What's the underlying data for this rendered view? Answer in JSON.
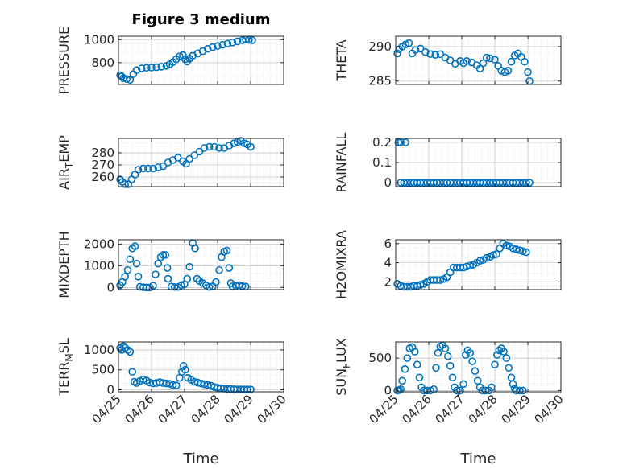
{
  "chart_data": [
    {
      "type": "scatter",
      "title": "Figure 3 medium",
      "ylabel": "PRESSURE",
      "ylim": [
        610,
        1030
      ],
      "yticks": [
        800,
        1000
      ],
      "xlim": [
        0,
        5
      ],
      "grid": true,
      "points": [
        [
          0.05,
          690
        ],
        [
          0.1,
          680
        ],
        [
          0.15,
          665
        ],
        [
          0.25,
          658
        ],
        [
          0.35,
          650
        ],
        [
          0.45,
          700
        ],
        [
          0.55,
          735
        ],
        [
          0.7,
          750
        ],
        [
          0.85,
          755
        ],
        [
          1.0,
          757
        ],
        [
          1.15,
          760
        ],
        [
          1.3,
          765
        ],
        [
          1.45,
          772
        ],
        [
          1.55,
          785
        ],
        [
          1.65,
          805
        ],
        [
          1.75,
          830
        ],
        [
          1.85,
          855
        ],
        [
          1.95,
          865
        ],
        [
          2.02,
          830
        ],
        [
          2.08,
          810
        ],
        [
          2.15,
          835
        ],
        [
          2.25,
          860
        ],
        [
          2.4,
          880
        ],
        [
          2.55,
          900
        ],
        [
          2.7,
          920
        ],
        [
          2.85,
          935
        ],
        [
          3.0,
          945
        ],
        [
          3.15,
          955
        ],
        [
          3.3,
          965
        ],
        [
          3.45,
          975
        ],
        [
          3.6,
          985
        ],
        [
          3.75,
          995
        ],
        [
          3.85,
          1000
        ],
        [
          3.95,
          998
        ],
        [
          4.05,
          995
        ]
      ]
    },
    {
      "type": "scatter",
      "ylabel": "THETA",
      "ylim": [
        284.5,
        291.5
      ],
      "yticks": [
        285,
        290
      ],
      "xlim": [
        0,
        5
      ],
      "grid": true,
      "points": [
        [
          0.05,
          289.0
        ],
        [
          0.1,
          289.6
        ],
        [
          0.2,
          290.0
        ],
        [
          0.3,
          290.3
        ],
        [
          0.4,
          290.5
        ],
        [
          0.5,
          289.0
        ],
        [
          0.6,
          289.5
        ],
        [
          0.75,
          289.7
        ],
        [
          0.9,
          289.2
        ],
        [
          1.05,
          288.9
        ],
        [
          1.2,
          288.8
        ],
        [
          1.35,
          288.9
        ],
        [
          1.5,
          288.4
        ],
        [
          1.65,
          288.0
        ],
        [
          1.8,
          287.5
        ],
        [
          1.95,
          287.9
        ],
        [
          2.05,
          287.6
        ],
        [
          2.15,
          287.9
        ],
        [
          2.3,
          287.7
        ],
        [
          2.45,
          287.3
        ],
        [
          2.55,
          286.8
        ],
        [
          2.65,
          287.6
        ],
        [
          2.75,
          288.4
        ],
        [
          2.85,
          288.3
        ],
        [
          3.0,
          288.1
        ],
        [
          3.1,
          287.2
        ],
        [
          3.2,
          286.5
        ],
        [
          3.3,
          286.3
        ],
        [
          3.4,
          286.5
        ],
        [
          3.5,
          287.8
        ],
        [
          3.6,
          288.7
        ],
        [
          3.7,
          289.0
        ],
        [
          3.8,
          288.5
        ],
        [
          3.9,
          287.8
        ],
        [
          4.0,
          286.3
        ],
        [
          4.05,
          285.0
        ]
      ]
    },
    {
      "type": "scatter",
      "ylabel": "AIR_TEMP",
      "ylim": [
        252,
        292
      ],
      "yticks": [
        260,
        270,
        280
      ],
      "xlim": [
        0,
        5
      ],
      "grid": true,
      "points": [
        [
          0.05,
          258
        ],
        [
          0.12,
          256
        ],
        [
          0.2,
          254
        ],
        [
          0.3,
          254
        ],
        [
          0.4,
          258
        ],
        [
          0.5,
          262
        ],
        [
          0.6,
          266
        ],
        [
          0.75,
          267
        ],
        [
          0.9,
          267
        ],
        [
          1.05,
          267
        ],
        [
          1.2,
          268
        ],
        [
          1.35,
          269
        ],
        [
          1.5,
          272
        ],
        [
          1.65,
          274
        ],
        [
          1.8,
          276
        ],
        [
          1.95,
          273
        ],
        [
          2.05,
          271
        ],
        [
          2.15,
          275
        ],
        [
          2.3,
          278
        ],
        [
          2.45,
          281
        ],
        [
          2.6,
          284
        ],
        [
          2.75,
          285
        ],
        [
          2.9,
          285
        ],
        [
          3.05,
          284
        ],
        [
          3.2,
          284
        ],
        [
          3.35,
          286
        ],
        [
          3.5,
          288
        ],
        [
          3.6,
          289
        ],
        [
          3.7,
          290
        ],
        [
          3.8,
          288
        ],
        [
          3.9,
          287
        ],
        [
          4.0,
          285
        ]
      ]
    },
    {
      "type": "scatter",
      "ylabel": "RAINFALL",
      "ylim": [
        -0.02,
        0.22
      ],
      "yticks": [
        0,
        0.1,
        0.2
      ],
      "xlim": [
        0,
        5
      ],
      "grid": true,
      "points": [
        [
          0.08,
          0.2
        ],
        [
          0.15,
          0.2
        ],
        [
          0.3,
          0.2
        ],
        [
          0.15,
          0
        ],
        [
          0.25,
          0
        ],
        [
          0.35,
          0
        ],
        [
          0.45,
          0
        ],
        [
          0.55,
          0
        ],
        [
          0.65,
          0
        ],
        [
          0.75,
          0
        ],
        [
          0.85,
          0
        ],
        [
          0.95,
          0
        ],
        [
          1.05,
          0
        ],
        [
          1.15,
          0
        ],
        [
          1.25,
          0
        ],
        [
          1.35,
          0
        ],
        [
          1.45,
          0
        ],
        [
          1.55,
          0
        ],
        [
          1.65,
          0
        ],
        [
          1.75,
          0
        ],
        [
          1.85,
          0
        ],
        [
          1.95,
          0
        ],
        [
          2.05,
          0
        ],
        [
          2.15,
          0
        ],
        [
          2.25,
          0
        ],
        [
          2.35,
          0
        ],
        [
          2.45,
          0
        ],
        [
          2.55,
          0
        ],
        [
          2.65,
          0
        ],
        [
          2.75,
          0
        ],
        [
          2.85,
          0
        ],
        [
          2.95,
          0
        ],
        [
          3.05,
          0
        ],
        [
          3.15,
          0
        ],
        [
          3.25,
          0
        ],
        [
          3.35,
          0
        ],
        [
          3.45,
          0
        ],
        [
          3.55,
          0
        ],
        [
          3.65,
          0
        ],
        [
          3.75,
          0
        ],
        [
          3.85,
          0
        ],
        [
          3.95,
          0
        ],
        [
          4.05,
          0
        ]
      ]
    },
    {
      "type": "scatter",
      "ylabel": "MIXDEPTH",
      "ylim": [
        -100,
        2200
      ],
      "yticks": [
        0,
        1000,
        2000
      ],
      "xlim": [
        0,
        5
      ],
      "grid": true,
      "points": [
        [
          0.05,
          100
        ],
        [
          0.12,
          250
        ],
        [
          0.2,
          500
        ],
        [
          0.28,
          800
        ],
        [
          0.35,
          1300
        ],
        [
          0.42,
          1800
        ],
        [
          0.5,
          1900
        ],
        [
          0.55,
          1100
        ],
        [
          0.6,
          500
        ],
        [
          0.65,
          30
        ],
        [
          0.75,
          10
        ],
        [
          0.85,
          0
        ],
        [
          0.95,
          0
        ],
        [
          1.05,
          80
        ],
        [
          1.12,
          600
        ],
        [
          1.2,
          1100
        ],
        [
          1.28,
          1400
        ],
        [
          1.35,
          1500
        ],
        [
          1.42,
          1500
        ],
        [
          1.48,
          900
        ],
        [
          1.5,
          400
        ],
        [
          1.6,
          40
        ],
        [
          1.7,
          20
        ],
        [
          1.8,
          20
        ],
        [
          1.9,
          100
        ],
        [
          2.0,
          150
        ],
        [
          2.08,
          400
        ],
        [
          2.15,
          950
        ],
        [
          2.25,
          2050
        ],
        [
          2.32,
          1800
        ],
        [
          2.38,
          400
        ],
        [
          2.45,
          300
        ],
        [
          2.55,
          200
        ],
        [
          2.65,
          100
        ],
        [
          2.75,
          20
        ],
        [
          2.85,
          50
        ],
        [
          2.95,
          250
        ],
        [
          3.05,
          800
        ],
        [
          3.12,
          1400
        ],
        [
          3.2,
          1650
        ],
        [
          3.28,
          1700
        ],
        [
          3.35,
          900
        ],
        [
          3.4,
          200
        ],
        [
          3.45,
          50
        ],
        [
          3.55,
          80
        ],
        [
          3.65,
          100
        ],
        [
          3.75,
          60
        ],
        [
          3.85,
          40
        ]
      ]
    },
    {
      "type": "scatter",
      "ylabel": "H2OMIXRA",
      "ylim": [
        1.2,
        6.4
      ],
      "yticks": [
        2,
        4,
        6
      ],
      "xlim": [
        0,
        5
      ],
      "grid": true,
      "points": [
        [
          0.05,
          1.8
        ],
        [
          0.15,
          1.6
        ],
        [
          0.25,
          1.5
        ],
        [
          0.35,
          1.5
        ],
        [
          0.45,
          1.5
        ],
        [
          0.55,
          1.6
        ],
        [
          0.65,
          1.6
        ],
        [
          0.75,
          1.7
        ],
        [
          0.85,
          1.8
        ],
        [
          0.95,
          2.0
        ],
        [
          1.05,
          2.2
        ],
        [
          1.15,
          2.2
        ],
        [
          1.25,
          2.2
        ],
        [
          1.35,
          2.2
        ],
        [
          1.45,
          2.3
        ],
        [
          1.55,
          2.5
        ],
        [
          1.65,
          3.0
        ],
        [
          1.75,
          3.5
        ],
        [
          1.85,
          3.5
        ],
        [
          1.95,
          3.5
        ],
        [
          2.05,
          3.5
        ],
        [
          2.15,
          3.6
        ],
        [
          2.25,
          3.7
        ],
        [
          2.35,
          3.8
        ],
        [
          2.45,
          4.0
        ],
        [
          2.55,
          4.2
        ],
        [
          2.65,
          4.3
        ],
        [
          2.75,
          4.5
        ],
        [
          2.85,
          4.6
        ],
        [
          2.95,
          4.8
        ],
        [
          3.05,
          4.9
        ],
        [
          3.15,
          5.5
        ],
        [
          3.25,
          6.0
        ],
        [
          3.35,
          5.8
        ],
        [
          3.45,
          5.7
        ],
        [
          3.55,
          5.5
        ],
        [
          3.65,
          5.4
        ],
        [
          3.75,
          5.3
        ],
        [
          3.85,
          5.2
        ],
        [
          3.95,
          5.1
        ]
      ]
    },
    {
      "type": "scatter",
      "ylabel": "TERR_MSL",
      "ylim": [
        -50,
        1200
      ],
      "yticks": [
        0,
        500,
        1000
      ],
      "xlim": [
        0,
        5
      ],
      "grid": true,
      "xlabel": "Time",
      "xticks": [
        "04/25",
        "04/26",
        "04/27",
        "04/28",
        "04/29",
        "04/30"
      ],
      "points": [
        [
          0.05,
          1050
        ],
        [
          0.1,
          1000
        ],
        [
          0.15,
          1100
        ],
        [
          0.2,
          1050
        ],
        [
          0.28,
          1000
        ],
        [
          0.35,
          950
        ],
        [
          0.42,
          450
        ],
        [
          0.48,
          200
        ],
        [
          0.55,
          170
        ],
        [
          0.65,
          220
        ],
        [
          0.75,
          260
        ],
        [
          0.85,
          230
        ],
        [
          0.95,
          180
        ],
        [
          1.05,
          160
        ],
        [
          1.15,
          170
        ],
        [
          1.25,
          190
        ],
        [
          1.35,
          170
        ],
        [
          1.45,
          160
        ],
        [
          1.55,
          150
        ],
        [
          1.65,
          120
        ],
        [
          1.75,
          110
        ],
        [
          1.85,
          300
        ],
        [
          1.92,
          450
        ],
        [
          1.97,
          600
        ],
        [
          2.02,
          500
        ],
        [
          2.1,
          300
        ],
        [
          2.2,
          250
        ],
        [
          2.3,
          200
        ],
        [
          2.4,
          180
        ],
        [
          2.5,
          160
        ],
        [
          2.6,
          140
        ],
        [
          2.7,
          120
        ],
        [
          2.8,
          100
        ],
        [
          2.9,
          70
        ],
        [
          3.0,
          50
        ],
        [
          3.1,
          40
        ],
        [
          3.2,
          30
        ],
        [
          3.3,
          20
        ],
        [
          3.4,
          20
        ],
        [
          3.5,
          15
        ],
        [
          3.6,
          10
        ],
        [
          3.7,
          10
        ],
        [
          3.8,
          10
        ],
        [
          3.9,
          10
        ],
        [
          4.0,
          10
        ]
      ]
    },
    {
      "type": "scatter",
      "ylabel": "SUN_FLUX",
      "ylim": [
        -20,
        750
      ],
      "yticks": [
        0,
        500
      ],
      "xlim": [
        0,
        5
      ],
      "grid": true,
      "xlabel": "Time",
      "xticks": [
        "04/25",
        "04/26",
        "04/27",
        "04/28",
        "04/29",
        "04/30"
      ],
      "points": [
        [
          0.05,
          0
        ],
        [
          0.1,
          5
        ],
        [
          0.15,
          20
        ],
        [
          0.2,
          150
        ],
        [
          0.28,
          330
        ],
        [
          0.35,
          500
        ],
        [
          0.42,
          650
        ],
        [
          0.5,
          670
        ],
        [
          0.58,
          600
        ],
        [
          0.65,
          400
        ],
        [
          0.72,
          200
        ],
        [
          0.78,
          50
        ],
        [
          0.85,
          0
        ],
        [
          0.95,
          0
        ],
        [
          1.05,
          0
        ],
        [
          1.15,
          20
        ],
        [
          1.22,
          350
        ],
        [
          1.28,
          580
        ],
        [
          1.35,
          680
        ],
        [
          1.42,
          700
        ],
        [
          1.5,
          650
        ],
        [
          1.58,
          530
        ],
        [
          1.65,
          380
        ],
        [
          1.72,
          200
        ],
        [
          1.78,
          50
        ],
        [
          1.85,
          0
        ],
        [
          1.95,
          0
        ],
        [
          2.05,
          100
        ],
        [
          2.12,
          550
        ],
        [
          2.18,
          620
        ],
        [
          2.25,
          580
        ],
        [
          2.32,
          450
        ],
        [
          2.4,
          300
        ],
        [
          2.48,
          150
        ],
        [
          2.55,
          50
        ],
        [
          2.62,
          0
        ],
        [
          2.72,
          0
        ],
        [
          2.82,
          0
        ],
        [
          2.9,
          50
        ],
        [
          3.0,
          400
        ],
        [
          3.07,
          550
        ],
        [
          3.13,
          620
        ],
        [
          3.2,
          650
        ],
        [
          3.27,
          600
        ],
        [
          3.35,
          500
        ],
        [
          3.42,
          350
        ],
        [
          3.5,
          200
        ],
        [
          3.55,
          100
        ],
        [
          3.6,
          30
        ],
        [
          3.65,
          0
        ],
        [
          3.75,
          0
        ],
        [
          3.85,
          0
        ]
      ]
    }
  ],
  "colors": {
    "marker": "#0072BD",
    "axis": "#262626",
    "grid": "#d9d9d9"
  }
}
